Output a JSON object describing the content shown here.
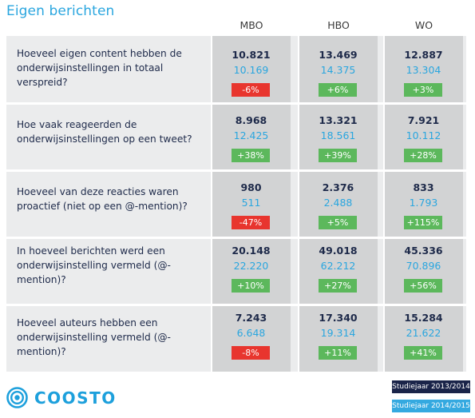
{
  "title": "Eigen berichten",
  "columns": [
    "MBO",
    "HBO",
    "WO"
  ],
  "rows": [
    {
      "question": "Hoeveel eigen content hebben de onderwijsinstellingen in totaal verspreid?",
      "cells": [
        {
          "y1": "10.821",
          "y2": "10.169",
          "change": "-6%"
        },
        {
          "y1": "13.469",
          "y2": "14.375",
          "change": "+6%"
        },
        {
          "y1": "12.887",
          "y2": "13.304",
          "change": "+3%"
        }
      ]
    },
    {
      "question": "Hoe vaak reageerden de onderwijsinstellingen op een tweet?",
      "cells": [
        {
          "y1": "8.968",
          "y2": "12.425",
          "change": "+38%"
        },
        {
          "y1": "13.321",
          "y2": "18.561",
          "change": "+39%"
        },
        {
          "y1": "7.921",
          "y2": "10.112",
          "change": "+28%"
        }
      ]
    },
    {
      "question": "Hoeveel van deze reacties waren proactief (niet op een @-mention)?",
      "cells": [
        {
          "y1": "980",
          "y2": "511",
          "change": "-47%"
        },
        {
          "y1": "2.376",
          "y2": "2.488",
          "change": "+5%"
        },
        {
          "y1": "833",
          "y2": "1.793",
          "change": "+115%"
        }
      ]
    },
    {
      "question": "In hoeveel berichten werd een onderwijsinstelling vermeld (@-mention)?",
      "cells": [
        {
          "y1": "20.148",
          "y2": "22.220",
          "change": "+10%"
        },
        {
          "y1": "49.018",
          "y2": "62.212",
          "change": "+27%"
        },
        {
          "y1": "45.336",
          "y2": "70.896",
          "change": "+56%"
        }
      ]
    },
    {
      "question": "Hoeveel auteurs hebben een onderwijsinstelling vermeld (@-mention)?",
      "cells": [
        {
          "y1": "7.243",
          "y2": "6.648",
          "change": "-8%"
        },
        {
          "y1": "17.340",
          "y2": "19.314",
          "change": "+11%"
        },
        {
          "y1": "15.284",
          "y2": "21.622",
          "change": "+41%"
        }
      ]
    }
  ],
  "brand": {
    "name": "COOSTO",
    "icon": "coosto-logo-icon"
  },
  "legend": {
    "year1": "Studiejaar 2013/2014",
    "year2": "Studiejaar 2014/2015"
  },
  "colors": {
    "accent": "#2aa6df",
    "dark": "#1a2449",
    "negative": "#e8352e",
    "positive": "#5cb85c"
  }
}
